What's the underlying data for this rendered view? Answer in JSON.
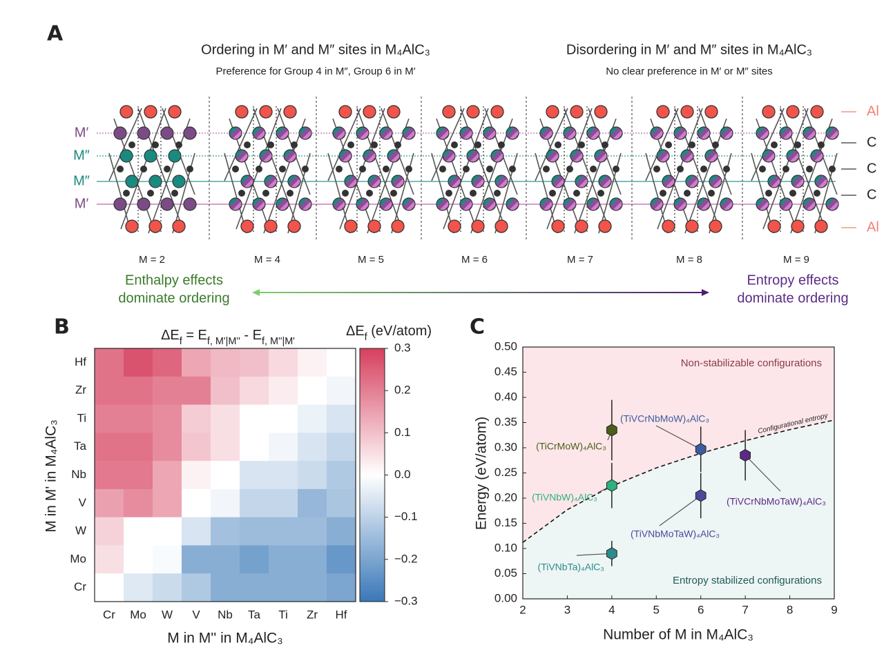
{
  "panel_a": {
    "letter": "A",
    "title_left": "Ordering in M′ and M″ sites in M₄AlC₃",
    "subtitle_left": "Preference for Group 4 in M″, Group 6 in M′",
    "title_right": "Disordering in M′ and M″ sites in M₄AlC₃",
    "subtitle_right": "No clear preference in M′ or M″ sites",
    "site_labels": [
      "M′",
      "M″",
      "M″",
      "M′"
    ],
    "layer_labels": [
      "Al",
      "C",
      "C",
      "C",
      "Al"
    ],
    "m_labels": [
      "M = 2",
      "M = 4",
      "M = 5",
      "M = 6",
      "M = 7",
      "M = 8",
      "M = 9"
    ],
    "enthalpy": [
      "Enthalpy effects",
      "dominate ordering"
    ],
    "entropy": [
      "Entropy effects",
      "dominate ordering"
    ]
  },
  "panel_b": {
    "letter": "B"
  },
  "panel_c": {
    "letter": "C"
  },
  "chart_data": [
    {
      "type": "heatmap",
      "title": [
        "ΔE",
        "f",
        " = E",
        "f, M'|M''",
        " - E",
        "f, M''|M'"
      ],
      "colorbar_label": [
        "ΔE",
        "f",
        " (eV/atom)"
      ],
      "xlabel": "M in M'' in M₄AlC₃",
      "ylabel": "M in M' in M₄AlC₃",
      "rows": [
        "Hf",
        "Zr",
        "Ti",
        "Ta",
        "Nb",
        "V",
        "W",
        "Mo",
        "Cr"
      ],
      "columns": [
        "Cr",
        "Mo",
        "W",
        "V",
        "Nb",
        "Ta",
        "Ti",
        "Zr",
        "Hf"
      ],
      "values": [
        [
          0.22,
          0.27,
          0.24,
          0.14,
          0.11,
          0.1,
          0.06,
          0.02,
          0
        ],
        [
          0.22,
          0.22,
          0.2,
          0.2,
          0.1,
          0.06,
          0.03,
          0,
          -0.02
        ],
        [
          0.2,
          0.2,
          0.18,
          0.08,
          0.05,
          0,
          0,
          -0.03,
          -0.06
        ],
        [
          0.22,
          0.22,
          0.18,
          0.09,
          0.05,
          0,
          -0.02,
          -0.06,
          -0.09
        ],
        [
          0.21,
          0.21,
          0.14,
          0.02,
          0,
          -0.06,
          -0.06,
          -0.08,
          -0.12
        ],
        [
          0.15,
          0.18,
          0.14,
          0,
          -0.02,
          -0.09,
          -0.09,
          -0.16,
          -0.13
        ],
        [
          0.07,
          0,
          0,
          -0.06,
          -0.14,
          -0.15,
          -0.15,
          -0.15,
          -0.18
        ],
        [
          0.05,
          0,
          -0.01,
          -0.18,
          -0.18,
          -0.21,
          -0.18,
          -0.18,
          -0.23
        ],
        [
          0,
          -0.05,
          -0.08,
          -0.12,
          -0.18,
          -0.18,
          -0.18,
          -0.18,
          -0.2
        ]
      ],
      "clim": [
        -0.3,
        0.3
      ],
      "cticks": [
        0.3,
        0.2,
        0.1,
        {
          "value": 0,
          "label": "0.0"
        },
        {
          "value": -0.1,
          "label": "−0.1"
        },
        {
          "value": -0.2,
          "label": "−0.2"
        },
        {
          "value": -0.3,
          "label": "−0.3"
        }
      ],
      "colors": {
        "high": "#d6405e",
        "mid": "#ffffff",
        "low": "#3a78b8"
      }
    },
    {
      "type": "scatter",
      "xlabel": "Number of M in M₄AlC₃",
      "ylabel": "Energy (eV/atom)",
      "xlim": [
        2,
        9
      ],
      "xticks": [
        2,
        3,
        4,
        5,
        6,
        7,
        8,
        9
      ],
      "ylim": [
        0,
        0.5
      ],
      "yticks": [
        {
          "value": 0,
          "label": "0.00"
        },
        {
          "value": 0.05,
          "label": "0.05"
        },
        {
          "value": 0.1,
          "label": "0.10"
        },
        {
          "value": 0.15,
          "label": "0.15"
        },
        {
          "value": 0.2,
          "label": "0.20"
        },
        {
          "value": 0.25,
          "label": "0.25"
        },
        {
          "value": 0.3,
          "label": "0.30"
        },
        {
          "value": 0.35,
          "label": "0.35"
        },
        {
          "value": 0.4,
          "label": "0.40"
        },
        {
          "value": 0.45,
          "label": "0.45"
        },
        {
          "value": 0.5,
          "label": "0.50"
        }
      ],
      "regions": {
        "upper": "Non-stabilizable configurations",
        "lower": "Entropy stabilized configurations",
        "upper_color": "#fde6e9",
        "lower_color": "#eef5f5"
      },
      "curve": {
        "name": "Configurational entropy",
        "x": [
          2,
          3,
          4,
          5,
          6,
          7,
          8,
          9
        ],
        "values": [
          0.112,
          0.177,
          0.224,
          0.26,
          0.289,
          0.314,
          0.336,
          0.355
        ]
      },
      "series": [
        {
          "name": "(TiCrMoW)₄AlC₃",
          "color": "#4b5e1a",
          "x": [
            4
          ],
          "values": [
            0.335
          ],
          "errors": [
            0.06
          ]
        },
        {
          "name": "(TiVNbW)₄AlC₃",
          "color": "#2db27d",
          "x": [
            4
          ],
          "values": [
            0.225
          ],
          "errors": [
            0.045
          ]
        },
        {
          "name": "(TiVNbTa)₄AlC₃",
          "color": "#2a8c8c",
          "x": [
            4
          ],
          "values": [
            0.09
          ],
          "errors": [
            0.025
          ]
        },
        {
          "name": "(TiVCrNbMoW)₄AlC₃",
          "color": "#3b5c9e",
          "x": [
            6
          ],
          "values": [
            0.297
          ],
          "errors": [
            0.045
          ]
        },
        {
          "name": "(TiVNbMoTaW)₄AlC₃",
          "color": "#4a4a9a",
          "x": [
            6
          ],
          "values": [
            0.205
          ],
          "errors": [
            0.045
          ]
        },
        {
          "name": "(TiVCrNbMoTaW)₄AlC₃",
          "color": "#5b2a86",
          "x": [
            7
          ],
          "values": [
            0.285
          ],
          "errors": [
            0.05
          ]
        }
      ]
    }
  ]
}
